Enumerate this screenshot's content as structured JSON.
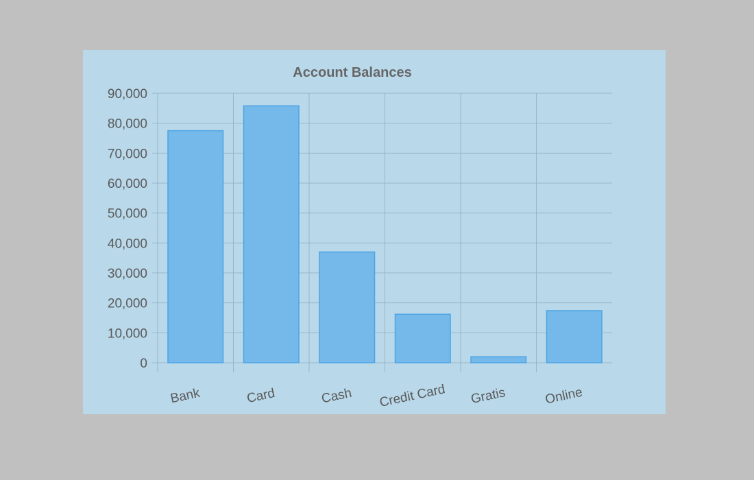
{
  "colors": {
    "page_background": "#c0c0c0",
    "panel_background": "#b9d8ea",
    "bar_fill": "#74b9ea",
    "bar_stroke": "#4ca4e4",
    "grid": "#97b6c8",
    "text": "#5a5a5a"
  },
  "chart_data": {
    "type": "bar",
    "title": "Account Balances",
    "xlabel": "",
    "ylabel": "",
    "categories": [
      "Bank",
      "Card",
      "Cash",
      "Credit Card",
      "Gratis",
      "Online"
    ],
    "values": [
      77500,
      85800,
      37000,
      16200,
      2000,
      17400
    ],
    "ylim": [
      0,
      90000
    ],
    "y_ticks": [
      0,
      10000,
      20000,
      30000,
      40000,
      50000,
      60000,
      70000,
      80000,
      90000
    ],
    "y_tick_labels": [
      "0",
      "10,000",
      "20,000",
      "30,000",
      "40,000",
      "50,000",
      "60,000",
      "70,000",
      "80,000",
      "90,000"
    ],
    "grid": true,
    "legend": "none"
  }
}
